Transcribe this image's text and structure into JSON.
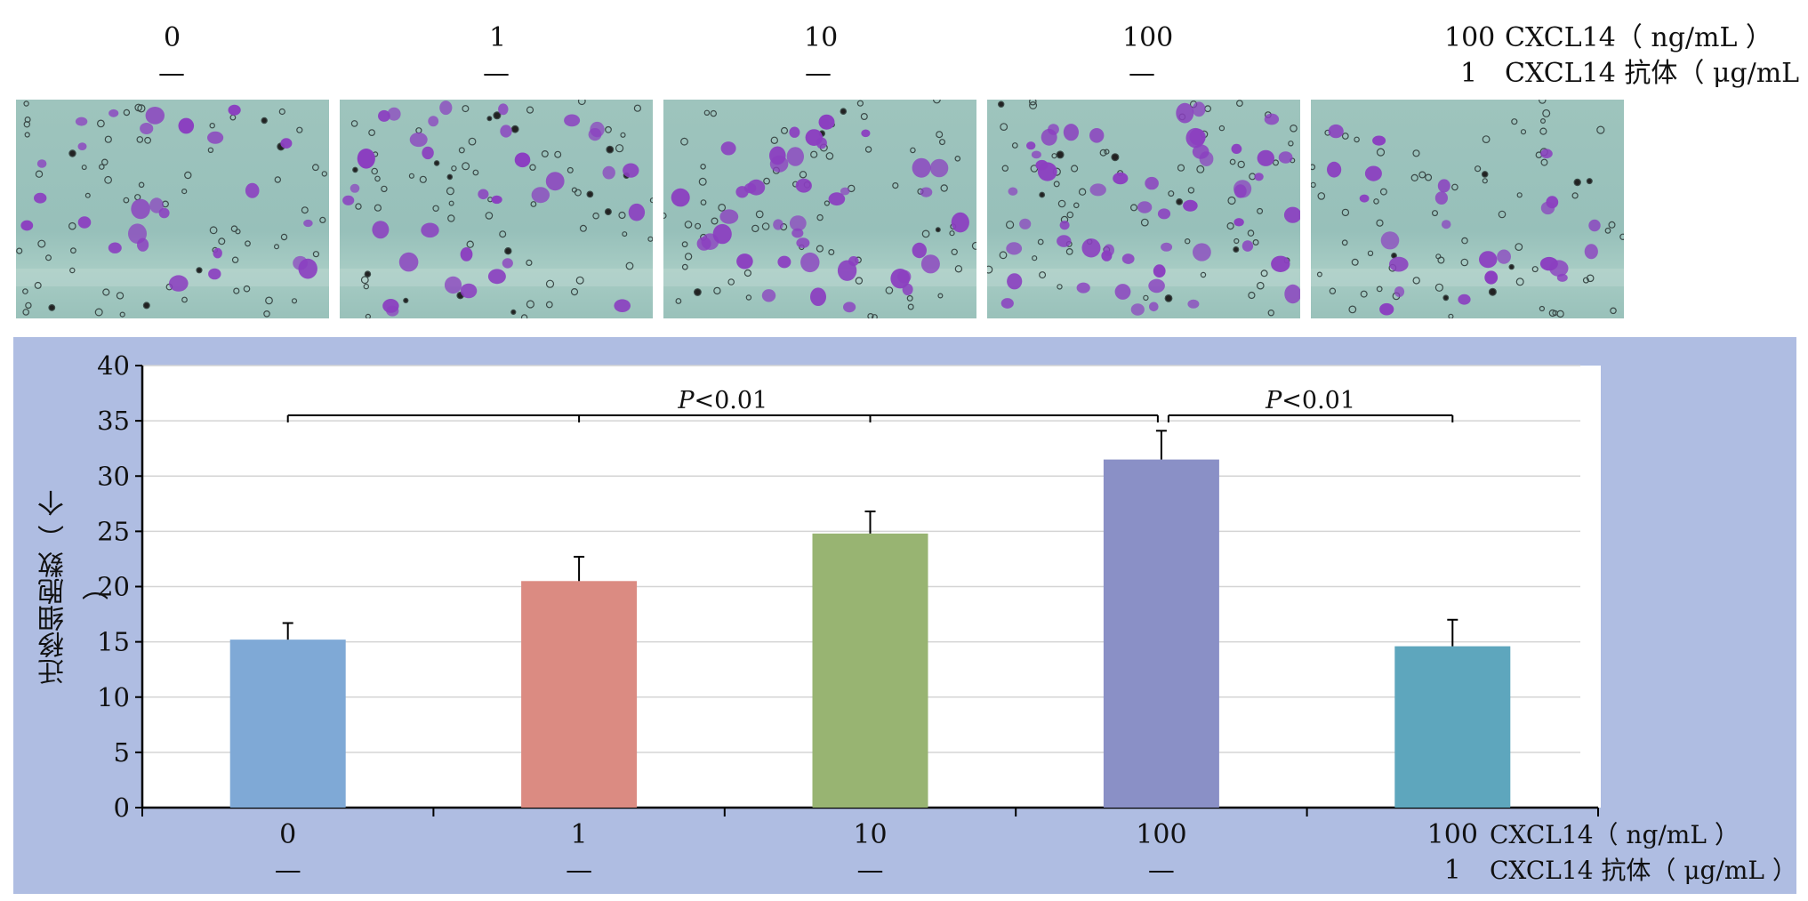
{
  "top_labels": {
    "conc": [
      "0",
      "1",
      "10",
      "100",
      "100"
    ],
    "antibody": [
      "—",
      "—",
      "—",
      "—",
      "1"
    ],
    "row1_label": "CXCL14（ ng/mL ）",
    "row2_label": "CXCL14 抗体（ μg/mL ）"
  },
  "colors": {
    "panel_bg": "#afbde2",
    "cell_stain": "#8b3fc0",
    "bars": [
      "#7fa9d6",
      "#db8b82",
      "#98b472",
      "#8a90c6",
      "#5ea6bd"
    ]
  },
  "images": [
    {
      "name": "micrograph-0"
    },
    {
      "name": "micrograph-1"
    },
    {
      "name": "micrograph-10"
    },
    {
      "name": "micrograph-100"
    },
    {
      "name": "micrograph-100-antibody"
    }
  ],
  "chart_data": {
    "type": "bar",
    "ylabel": "迁移细胞数（ 个 ）",
    "ylim": [
      0,
      40
    ],
    "yticks": [
      0,
      5,
      10,
      15,
      20,
      25,
      30,
      35,
      40
    ],
    "categories": [
      "0",
      "1",
      "10",
      "100",
      "100"
    ],
    "antibody_row": [
      "—",
      "—",
      "—",
      "—",
      "1"
    ],
    "row1_label": "CXCL14（ ng/mL ）",
    "row2_label": "CXCL14 抗体（ μg/mL ）",
    "values": [
      15.2,
      20.5,
      24.8,
      31.5,
      14.6
    ],
    "errors": [
      1.5,
      2.2,
      2.0,
      2.6,
      2.4
    ],
    "grid": true,
    "significance": [
      {
        "from": 0,
        "to": 3,
        "ticks": [
          0,
          1,
          2,
          3
        ],
        "label": "P<0.01",
        "y": 35.5
      },
      {
        "from": 3,
        "to": 4,
        "ticks": [
          3,
          4
        ],
        "label": "P<0.01",
        "y": 35.5
      }
    ]
  }
}
